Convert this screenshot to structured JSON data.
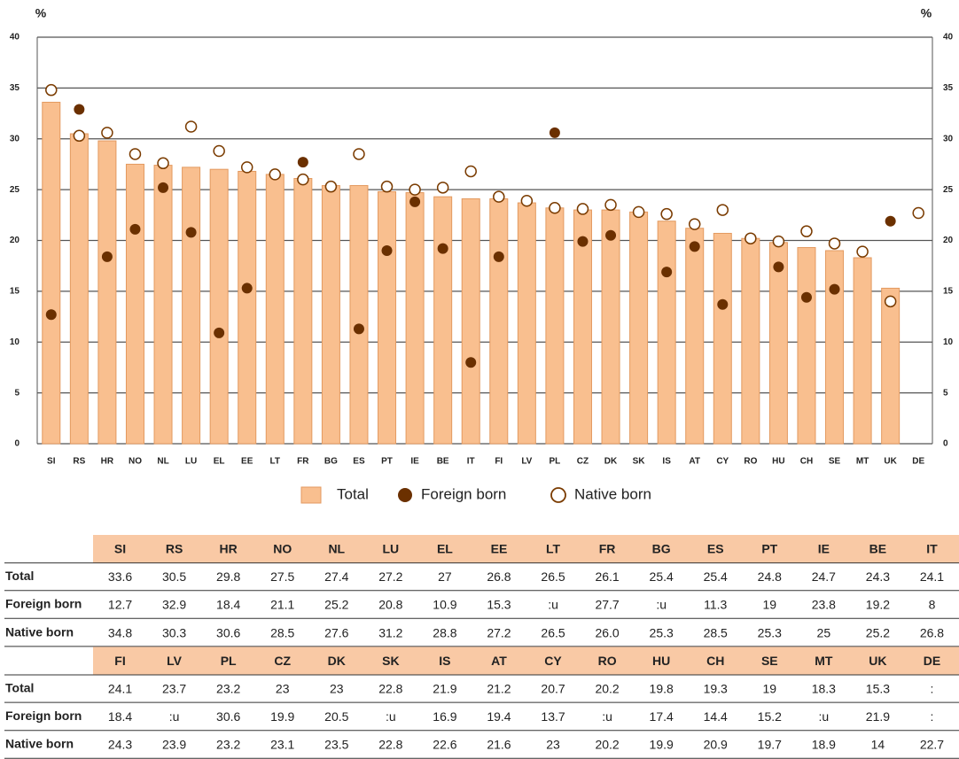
{
  "chart_data": {
    "type": "bar",
    "y_label": "%",
    "categories": [
      "SI",
      "RS",
      "HR",
      "NO",
      "NL",
      "LU",
      "EL",
      "EE",
      "LT",
      "FR",
      "BG",
      "ES",
      "PT",
      "IE",
      "BE",
      "IT",
      "FI",
      "LV",
      "PL",
      "CZ",
      "DK",
      "SK",
      "IS",
      "AT",
      "CY",
      "RO",
      "HU",
      "CH",
      "SE",
      "MT",
      "UK",
      "DE"
    ],
    "series": [
      {
        "name": "Total",
        "mark": "bar",
        "color": "#f9bf8f",
        "values": [
          33.6,
          30.5,
          29.8,
          27.5,
          27.4,
          27.2,
          27,
          26.8,
          26.5,
          26.1,
          25.4,
          25.4,
          24.8,
          24.7,
          24.3,
          24.1,
          24.1,
          23.7,
          23.2,
          23,
          23,
          22.8,
          21.9,
          21.2,
          20.7,
          20.2,
          19.8,
          19.3,
          19,
          18.3,
          15.3,
          null
        ]
      },
      {
        "name": "Foreign born",
        "mark": "dot",
        "color": "#6b3000",
        "values": [
          12.7,
          32.9,
          18.4,
          21.1,
          25.2,
          20.8,
          10.9,
          15.3,
          null,
          27.7,
          null,
          11.3,
          19,
          23.8,
          19.2,
          8,
          18.4,
          null,
          30.6,
          19.9,
          20.5,
          null,
          16.9,
          19.4,
          13.7,
          null,
          17.4,
          14.4,
          15.2,
          null,
          21.9,
          null
        ]
      },
      {
        "name": "Native born",
        "mark": "ring",
        "color": "#7a3b00",
        "values": [
          34.8,
          30.3,
          30.6,
          28.5,
          27.6,
          31.2,
          28.8,
          27.2,
          26.5,
          26.0,
          25.3,
          28.5,
          25.3,
          25,
          25.2,
          26.8,
          24.3,
          23.9,
          23.2,
          23.1,
          23.5,
          22.8,
          22.6,
          21.6,
          23,
          20.2,
          19.9,
          20.9,
          19.7,
          18.9,
          14,
          22.7
        ]
      }
    ],
    "ylim": [
      0,
      40
    ],
    "yticks": [
      0,
      5,
      10,
      15,
      20,
      25,
      30,
      35,
      40
    ],
    "grid": true
  },
  "table": [
    {
      "header": [
        "SI",
        "RS",
        "HR",
        "NO",
        "NL",
        "LU",
        "EL",
        "EE",
        "LT",
        "FR",
        "BG",
        "ES",
        "PT",
        "IE",
        "BE",
        "IT"
      ],
      "rows": [
        {
          "label": "Total",
          "cells": [
            "33.6",
            "30.5",
            "29.8",
            "27.5",
            "27.4",
            "27.2",
            "27",
            "26.8",
            "26.5",
            "26.1",
            "25.4",
            "25.4",
            "24.8",
            "24.7",
            "24.3",
            "24.1"
          ]
        },
        {
          "label": "Foreign born",
          "cells": [
            "12.7",
            "32.9",
            "18.4",
            "21.1",
            "25.2",
            "20.8",
            "10.9",
            "15.3",
            ":u",
            "27.7",
            ":u",
            "11.3",
            "19",
            "23.8",
            "19.2",
            "8"
          ]
        },
        {
          "label": "Native born",
          "cells": [
            "34.8",
            "30.3",
            "30.6",
            "28.5",
            "27.6",
            "31.2",
            "28.8",
            "27.2",
            "26.5",
            "26.0",
            "25.3",
            "28.5",
            "25.3",
            "25",
            "25.2",
            "26.8"
          ]
        }
      ]
    },
    {
      "header": [
        "FI",
        "LV",
        "PL",
        "CZ",
        "DK",
        "SK",
        "IS",
        "AT",
        "CY",
        "RO",
        "HU",
        "CH",
        "SE",
        "MT",
        "UK",
        "DE"
      ],
      "rows": [
        {
          "label": "Total",
          "cells": [
            "24.1",
            "23.7",
            "23.2",
            "23",
            "23",
            "22.8",
            "21.9",
            "21.2",
            "20.7",
            "20.2",
            "19.8",
            "19.3",
            "19",
            "18.3",
            "15.3",
            ":"
          ]
        },
        {
          "label": "Foreign born",
          "cells": [
            "18.4",
            ":u",
            "30.6",
            "19.9",
            "20.5",
            ":u",
            "16.9",
            "19.4",
            "13.7",
            ":u",
            "17.4",
            "14.4",
            "15.2",
            ":u",
            "21.9",
            ":"
          ]
        },
        {
          "label": "Native born",
          "cells": [
            "24.3",
            "23.9",
            "23.2",
            "23.1",
            "23.5",
            "22.8",
            "22.6",
            "21.6",
            "23",
            "20.2",
            "19.9",
            "20.9",
            "19.7",
            "18.9",
            "14",
            "22.7"
          ]
        }
      ]
    }
  ]
}
